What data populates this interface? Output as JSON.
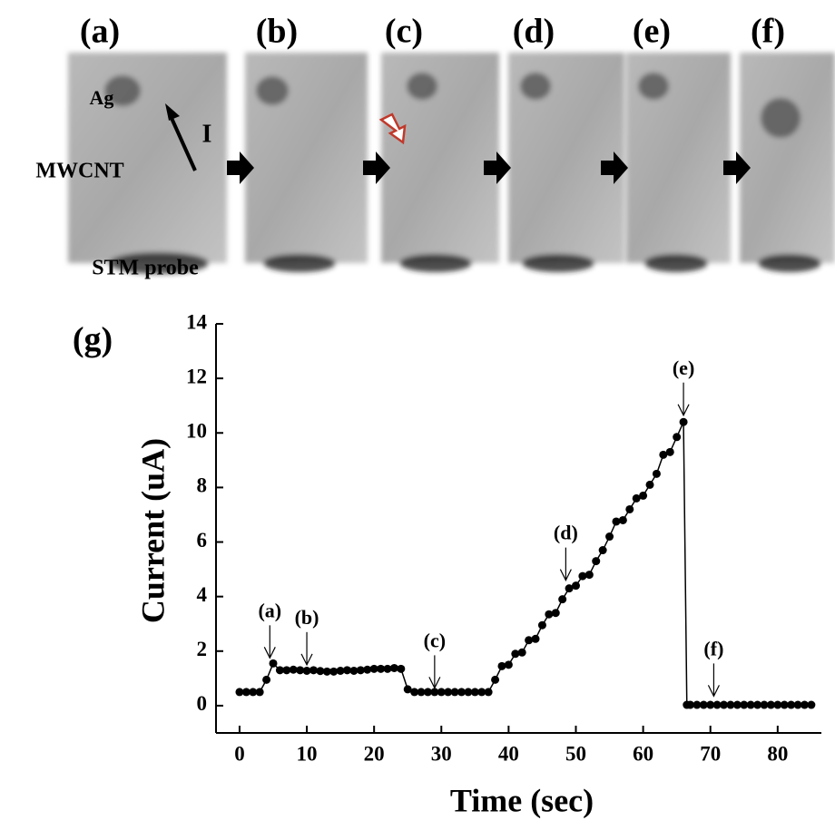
{
  "panels": {
    "labels": [
      "(a)",
      "(b)",
      "(c)",
      "(d)",
      "(e)",
      "(f)"
    ],
    "annotations": {
      "ag": "Ag",
      "current": "I",
      "tube": "MWCNT",
      "probe": "STM probe"
    }
  },
  "chart_data": {
    "type": "line",
    "label": "(g)",
    "markers": true,
    "x_label": "Time (sec)",
    "y_label": "Current (uA)",
    "xlim": [
      -3.5,
      86.5
    ],
    "ylim": [
      -1,
      14
    ],
    "xticks": [
      0,
      10,
      20,
      30,
      40,
      50,
      60,
      70,
      80
    ],
    "yticks": [
      0,
      2,
      4,
      6,
      8,
      10,
      12,
      14
    ],
    "color": "#000000",
    "x": [
      0,
      1,
      2,
      3,
      4,
      5,
      6,
      7,
      8,
      9,
      10,
      11,
      12,
      13,
      14,
      15,
      16,
      17,
      18,
      19,
      20,
      21,
      22,
      23,
      24,
      25,
      26,
      27,
      28,
      29,
      30,
      31,
      32,
      33,
      34,
      35,
      36,
      37,
      38,
      39,
      40,
      41,
      42,
      43,
      44,
      45,
      46,
      47,
      48,
      49,
      50,
      51,
      52,
      53,
      54,
      55,
      56,
      57,
      58,
      59,
      60,
      61,
      62,
      63,
      64,
      65,
      66,
      66.5,
      67,
      68,
      69,
      70,
      71,
      72,
      73,
      74,
      75,
      76,
      77,
      78,
      79,
      80,
      81,
      82,
      83,
      84,
      85
    ],
    "values": [
      0.5,
      0.5,
      0.5,
      0.5,
      0.95,
      1.55,
      1.3,
      1.3,
      1.32,
      1.3,
      1.28,
      1.3,
      1.27,
      1.25,
      1.25,
      1.28,
      1.3,
      1.28,
      1.3,
      1.32,
      1.35,
      1.35,
      1.35,
      1.38,
      1.35,
      0.6,
      0.5,
      0.5,
      0.5,
      0.5,
      0.5,
      0.5,
      0.5,
      0.5,
      0.5,
      0.5,
      0.5,
      0.5,
      0.95,
      1.45,
      1.5,
      1.9,
      1.95,
      2.4,
      2.45,
      2.95,
      3.35,
      3.4,
      3.9,
      4.3,
      4.4,
      4.75,
      4.8,
      5.3,
      5.7,
      6.2,
      6.75,
      6.8,
      7.2,
      7.6,
      7.7,
      8.1,
      8.5,
      9.2,
      9.3,
      9.85,
      10.4,
      0.03,
      0.03,
      0.03,
      0.03,
      0.03,
      0.03,
      0.03,
      0.03,
      0.03,
      0.03,
      0.03,
      0.03,
      0.03,
      0.03,
      0.03,
      0.03,
      0.03,
      0.03,
      0.03,
      0.03
    ],
    "annotations": [
      {
        "text": "(a)",
        "x": 4.5,
        "y": 1.75
      },
      {
        "text": "(b)",
        "x": 10,
        "y": 1.5
      },
      {
        "text": "(c)",
        "x": 29,
        "y": 0.65
      },
      {
        "text": "(d)",
        "x": 48.5,
        "y": 4.6
      },
      {
        "text": "(e)",
        "x": 66,
        "y": 10.65
      },
      {
        "text": "(f)",
        "x": 70.5,
        "y": 0.35
      }
    ]
  }
}
